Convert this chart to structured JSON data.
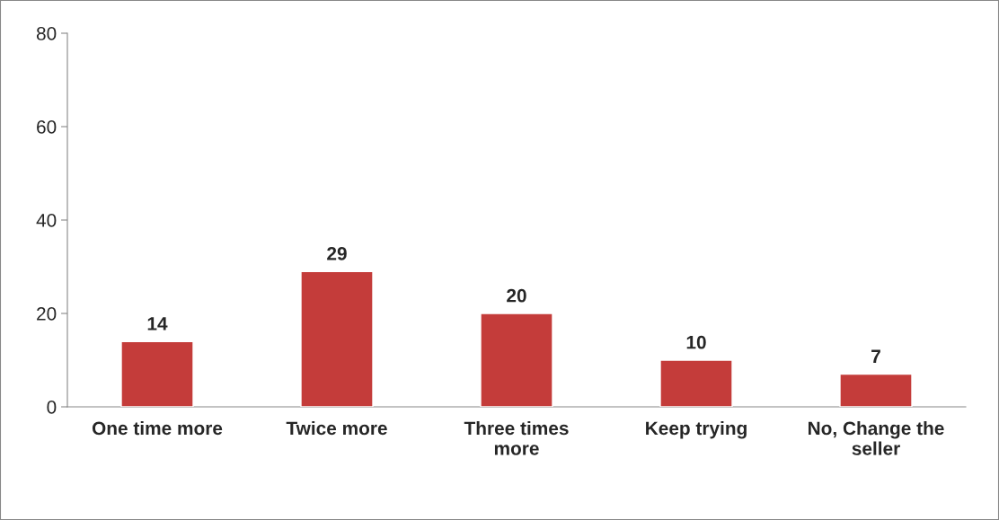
{
  "chart_data": {
    "type": "bar",
    "categories": [
      "One time more",
      "Twice more",
      "Three times\nmore",
      "Keep trying",
      "No, Change the\nseller"
    ],
    "values": [
      14,
      29,
      20,
      10,
      7
    ],
    "color": "#c43c3a",
    "ylim": [
      0,
      80
    ],
    "yticks": [
      0,
      20,
      40,
      60,
      80
    ],
    "grid": false,
    "legend": false,
    "data_labels": true
  }
}
